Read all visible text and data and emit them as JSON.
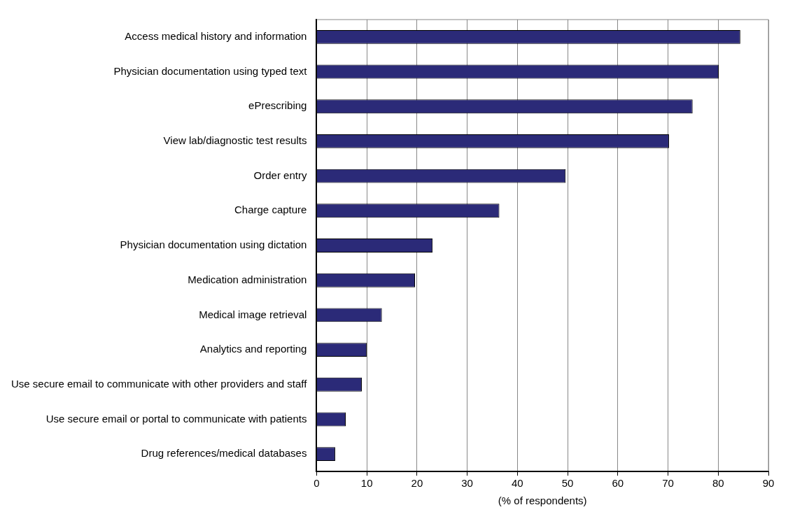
{
  "chart_data": {
    "type": "bar",
    "orientation": "horizontal",
    "xlabel": "(% of respondents)",
    "categories": [
      "Access medical history and information",
      "Physician documentation using typed text",
      "ePrescribing",
      "View lab/diagnostic test results",
      "Order entry",
      "Charge capture",
      "Physician documentation using dictation",
      "Medication administration",
      "Medical image retrieval",
      "Analytics and reporting",
      "Use secure email to communicate with other providers and staff",
      "Use secure email or portal to communicate with patients",
      "Drug references/medical databases"
    ],
    "values": [
      84.4,
      80.1,
      74.9,
      70.2,
      49.6,
      36.4,
      23.1,
      19.6,
      13.0,
      10.0,
      9.0,
      5.8,
      3.7
    ],
    "color": "#2b2a78",
    "xlim": [
      0,
      90
    ],
    "xticks": [
      0,
      10,
      20,
      30,
      40,
      50,
      60,
      70,
      80,
      90
    ],
    "grid": "x",
    "legend": false
  }
}
